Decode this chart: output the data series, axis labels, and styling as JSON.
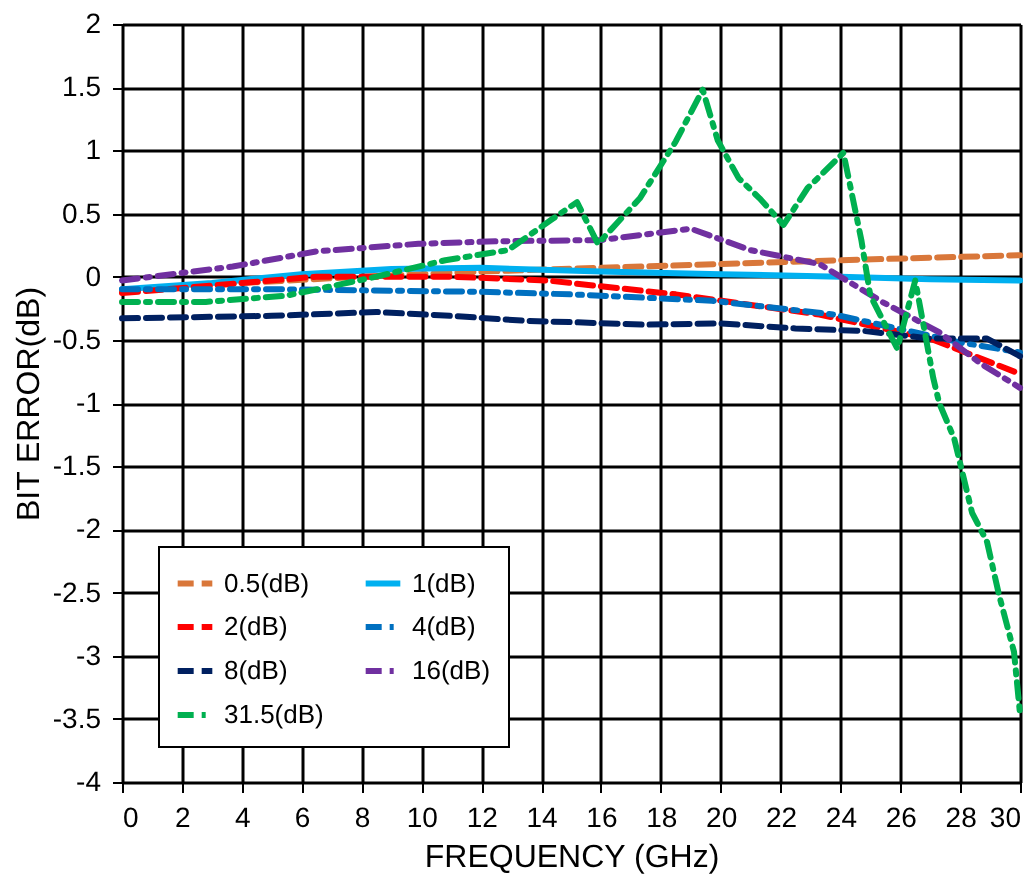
{
  "chart_data": {
    "type": "line",
    "xlabel": "FREQUENCY (GHz)",
    "ylabel": "BIT ERROR(dB)",
    "xlim": [
      0,
      30
    ],
    "xticks": [
      0,
      2,
      4,
      6,
      8,
      10,
      12,
      14,
      16,
      18,
      20,
      22,
      24,
      26,
      28,
      30
    ],
    "ylim": [
      -4,
      2
    ],
    "yticks": [
      -4,
      -3.5,
      -3,
      -2.5,
      -2,
      -1.5,
      -1,
      -0.5,
      0,
      0.5,
      1,
      1.5,
      2
    ],
    "grid": true,
    "legend": "bottom left",
    "marker": "none",
    "series": [
      {
        "name": "0.5(dB)",
        "color": "#d9773a",
        "line_style": "dashed",
        "x": [
          0,
          4,
          8,
          12,
          16,
          20,
          24,
          27,
          30
        ],
        "values": [
          -0.12,
          -0.05,
          0.0,
          0.04,
          0.07,
          0.1,
          0.13,
          0.15,
          0.17
        ]
      },
      {
        "name": "1(dB)",
        "color": "#00b0f0",
        "line_style": "solid",
        "x": [
          0,
          3,
          6,
          9,
          12,
          16,
          20,
          24,
          27,
          30
        ],
        "values": [
          -0.1,
          -0.05,
          0.02,
          0.06,
          0.07,
          0.04,
          0.02,
          0.0,
          -0.02,
          -0.03
        ]
      },
      {
        "name": "2(dB)",
        "color": "#ff0000",
        "line_style": "dashed",
        "x": [
          0,
          3,
          6.5,
          11,
          14.2,
          18.5,
          23.3,
          27,
          30
        ],
        "values": [
          -0.13,
          -0.07,
          0.0,
          0.0,
          -0.03,
          -0.14,
          -0.3,
          -0.49,
          -0.77
        ]
      },
      {
        "name": "4(dB)",
        "color": "#0070c0",
        "line_style": "dashdot",
        "x": [
          0,
          5.3,
          12,
          15,
          19.7,
          23.8,
          28,
          30
        ],
        "values": [
          -0.1,
          -0.1,
          -0.12,
          -0.14,
          -0.19,
          -0.3,
          -0.52,
          -0.6
        ]
      },
      {
        "name": "8(dB)",
        "color": "#002060",
        "line_style": "dashed",
        "x": [
          0,
          5,
          8.5,
          11,
          13.5,
          15,
          17.5,
          20,
          22.5,
          24.8,
          27,
          28.9,
          30
        ],
        "values": [
          -0.33,
          -0.31,
          -0.28,
          -0.31,
          -0.35,
          -0.36,
          -0.38,
          -0.37,
          -0.41,
          -0.43,
          -0.49,
          -0.49,
          -0.63
        ]
      },
      {
        "name": "16(dB)",
        "color": "#7030a0",
        "line_style": "dashdot",
        "x": [
          0,
          3.7,
          6.5,
          9.9,
          12.5,
          16,
          19,
          21,
          23.3,
          25.4,
          27.3,
          28.7,
          30
        ],
        "values": [
          -0.03,
          0.08,
          0.2,
          0.26,
          0.28,
          0.29,
          0.38,
          0.21,
          0.1,
          -0.2,
          -0.44,
          -0.69,
          -0.88
        ]
      },
      {
        "name": "31.5(dB)",
        "color": "#00b050",
        "line_style": "dashdot",
        "x": [
          0,
          2.8,
          5.5,
          8.5,
          10.8,
          12.9,
          14.4,
          15.2,
          15.9,
          17.3,
          18.5,
          19.4,
          19.9,
          20.6,
          21.3,
          22.1,
          22.9,
          24.1,
          24.7,
          25,
          25.9,
          26.5,
          27.1,
          27.3,
          27.8,
          28.4,
          28.9,
          29.3,
          29.8,
          30
        ],
        "values": [
          -0.2,
          -0.2,
          -0.15,
          0.0,
          0.13,
          0.21,
          0.46,
          0.59,
          0.26,
          0.62,
          1.07,
          1.48,
          1.08,
          0.78,
          0.62,
          0.41,
          0.7,
          0.98,
          0.29,
          -0.15,
          -0.57,
          -0.03,
          -0.8,
          -1.0,
          -1.28,
          -1.87,
          -2.1,
          -2.52,
          -2.97,
          -3.46
        ]
      }
    ]
  }
}
